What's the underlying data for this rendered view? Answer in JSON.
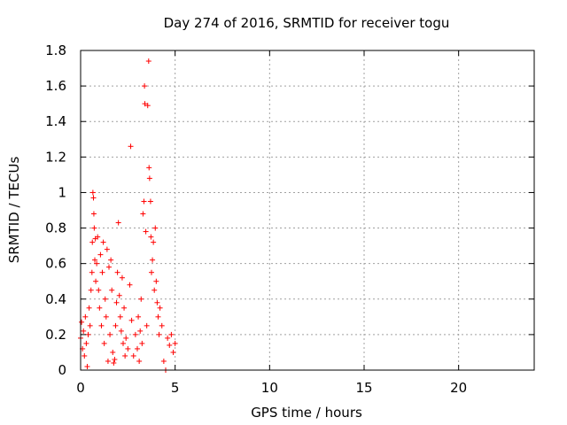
{
  "chart_data": {
    "type": "scatter",
    "title": "Day 274 of 2016, SRMTID for receiver togu",
    "xlabel": "GPS time / hours",
    "ylabel": "SRMTID / TECUs",
    "xlim": [
      0,
      24
    ],
    "ylim": [
      0,
      1.8
    ],
    "xticks": [
      0,
      5,
      10,
      15,
      20
    ],
    "xtick_labels": [
      "0",
      "5",
      "10",
      "15",
      "20"
    ],
    "yticks": [
      0,
      0.2,
      0.4,
      0.6,
      0.8,
      1,
      1.2,
      1.4,
      1.6,
      1.8
    ],
    "ytick_labels": [
      "0",
      "0.2",
      "0.4",
      "0.6",
      "0.8",
      "1",
      "1.2",
      "1.4",
      "1.6",
      "1.8"
    ],
    "grid": true,
    "marker": "+",
    "color": "#ff0000",
    "series": [
      {
        "name": "SRMTID",
        "points": [
          [
            0.0,
            0.18
          ],
          [
            0.05,
            0.27
          ],
          [
            0.1,
            0.12
          ],
          [
            0.15,
            0.22
          ],
          [
            0.2,
            0.08
          ],
          [
            0.25,
            0.3
          ],
          [
            0.3,
            0.15
          ],
          [
            0.35,
            0.02
          ],
          [
            0.4,
            0.2
          ],
          [
            0.45,
            0.35
          ],
          [
            0.5,
            0.25
          ],
          [
            0.55,
            0.45
          ],
          [
            0.6,
            0.55
          ],
          [
            0.62,
            0.72
          ],
          [
            0.65,
            1.0
          ],
          [
            0.68,
            0.97
          ],
          [
            0.7,
            0.88
          ],
          [
            0.72,
            0.8
          ],
          [
            0.75,
            0.62
          ],
          [
            0.78,
            0.74
          ],
          [
            0.8,
            0.5
          ],
          [
            0.85,
            0.6
          ],
          [
            0.9,
            0.75
          ],
          [
            0.95,
            0.45
          ],
          [
            1.0,
            0.35
          ],
          [
            1.05,
            0.65
          ],
          [
            1.1,
            0.25
          ],
          [
            1.15,
            0.55
          ],
          [
            1.2,
            0.72
          ],
          [
            1.25,
            0.15
          ],
          [
            1.3,
            0.4
          ],
          [
            1.35,
            0.3
          ],
          [
            1.4,
            0.68
          ],
          [
            1.45,
            0.05
          ],
          [
            1.5,
            0.58
          ],
          [
            1.55,
            0.2
          ],
          [
            1.6,
            0.62
          ],
          [
            1.65,
            0.45
          ],
          [
            1.7,
            0.1
          ],
          [
            1.75,
            0.04
          ],
          [
            1.8,
            0.06
          ],
          [
            1.85,
            0.25
          ],
          [
            1.9,
            0.38
          ],
          [
            1.95,
            0.55
          ],
          [
            2.0,
            0.83
          ],
          [
            2.05,
            0.42
          ],
          [
            2.1,
            0.3
          ],
          [
            2.15,
            0.22
          ],
          [
            2.2,
            0.52
          ],
          [
            2.25,
            0.15
          ],
          [
            2.3,
            0.35
          ],
          [
            2.35,
            0.08
          ],
          [
            2.4,
            0.18
          ],
          [
            2.5,
            0.12
          ],
          [
            2.6,
            0.48
          ],
          [
            2.65,
            1.26
          ],
          [
            2.7,
            0.28
          ],
          [
            2.8,
            0.08
          ],
          [
            2.9,
            0.2
          ],
          [
            3.0,
            0.12
          ],
          [
            3.05,
            0.3
          ],
          [
            3.1,
            0.05
          ],
          [
            3.15,
            0.22
          ],
          [
            3.2,
            0.4
          ],
          [
            3.25,
            0.15
          ],
          [
            3.3,
            0.88
          ],
          [
            3.35,
            0.95
          ],
          [
            3.38,
            1.6
          ],
          [
            3.4,
            1.5
          ],
          [
            3.45,
            0.78
          ],
          [
            3.5,
            0.25
          ],
          [
            3.55,
            1.49
          ],
          [
            3.6,
            1.74
          ],
          [
            3.62,
            1.14
          ],
          [
            3.65,
            1.08
          ],
          [
            3.7,
            0.95
          ],
          [
            3.72,
            0.75
          ],
          [
            3.75,
            0.55
          ],
          [
            3.8,
            0.62
          ],
          [
            3.85,
            0.72
          ],
          [
            3.9,
            0.45
          ],
          [
            3.95,
            0.8
          ],
          [
            4.0,
            0.5
          ],
          [
            4.05,
            0.38
          ],
          [
            4.1,
            0.3
          ],
          [
            4.15,
            0.2
          ],
          [
            4.2,
            0.35
          ],
          [
            4.3,
            0.25
          ],
          [
            4.4,
            0.05
          ],
          [
            4.5,
            0.0
          ],
          [
            4.6,
            0.18
          ],
          [
            4.7,
            0.14
          ],
          [
            4.8,
            0.2
          ],
          [
            4.9,
            0.1
          ],
          [
            5.0,
            0.15
          ]
        ]
      }
    ]
  }
}
